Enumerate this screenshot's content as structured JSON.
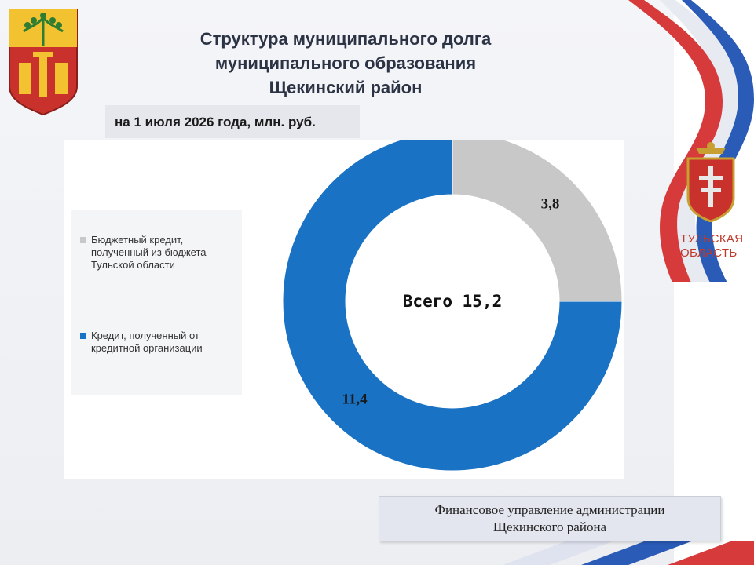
{
  "title_lines": [
    "Структура муниципального долга",
    "муниципального образования",
    "Щекинский район"
  ],
  "subtitle": "на 1 июля 2026 года, млн. руб.",
  "region_label_lines": [
    "ТУЛЬСКАЯ",
    "ОБЛАСТЬ"
  ],
  "footer_lines": [
    "Финансовое управление администрации",
    "Щекинского района"
  ],
  "icons": {
    "left_crest": "shchekino-coat-of-arms-icon",
    "right_crest": "tula-oblast-coat-of-arms-icon",
    "flag": "russian-flag-ribbon-icon"
  },
  "colors": {
    "budget_credit": "#c8c8c8",
    "bank_credit": "#1a72c4",
    "title": "#2c3345",
    "region_label": "#c0392b"
  },
  "chart_data": {
    "type": "pie",
    "variant": "donut",
    "title": "Структура муниципального долга муниципального образования Щекинский район",
    "subtitle": "на 1 июля 2026 года, млн. руб.",
    "center_label": "Всего 15,2",
    "total": 15.2,
    "slices": [
      {
        "name": "Бюджетный кредит, полученный из бюджета Тульской области",
        "value": 3.8,
        "label": "3,8",
        "color": "#c8c8c8"
      },
      {
        "name": "Кредит, полученный от кредитной организации",
        "value": 11.4,
        "label": "11,4",
        "color": "#1a72c4"
      }
    ],
    "start_angle_deg": 0,
    "direction": "clockwise",
    "legend_position": "left"
  }
}
